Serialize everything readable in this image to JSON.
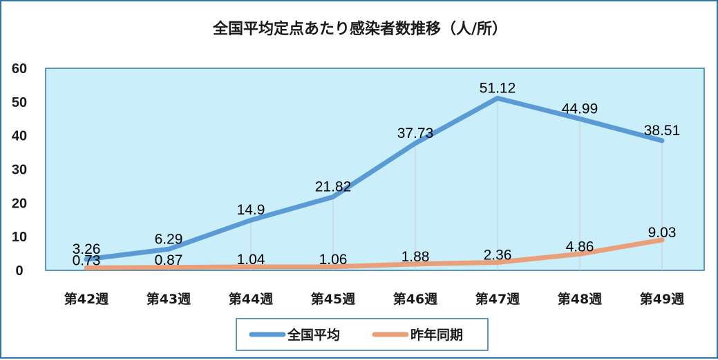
{
  "chart_data": {
    "type": "line",
    "title": "全国平均定点あたり感染者数推移（人/所）",
    "categories": [
      "第42週",
      "第43週",
      "第44週",
      "第45週",
      "第46週",
      "第47週",
      "第48週",
      "第49週"
    ],
    "yticks": [
      "0",
      "10",
      "20",
      "30",
      "40",
      "50",
      "60"
    ],
    "ylim": [
      0,
      60
    ],
    "series": [
      {
        "name": "全国平均",
        "color": "#5b9bd5",
        "values": [
          3.26,
          6.29,
          14.9,
          21.82,
          37.73,
          51.12,
          44.99,
          38.51
        ],
        "labels": [
          "3.26",
          "6.29",
          "14.9",
          "21.82",
          "37.73",
          "51.12",
          "44.99",
          "38.51"
        ]
      },
      {
        "name": "昨年同期",
        "color": "#e9a07a",
        "values": [
          0.73,
          0.87,
          1.04,
          1.06,
          1.88,
          2.36,
          4.86,
          9.03
        ],
        "labels": [
          "0.73",
          "0.87",
          "1.04",
          "1.06",
          "1.88",
          "2.36",
          "4.86",
          "9.03"
        ]
      }
    ],
    "legend": "bottom",
    "plot_background": "#cbeefb",
    "plot_border": "#2e75a8",
    "drop_lines": true
  }
}
